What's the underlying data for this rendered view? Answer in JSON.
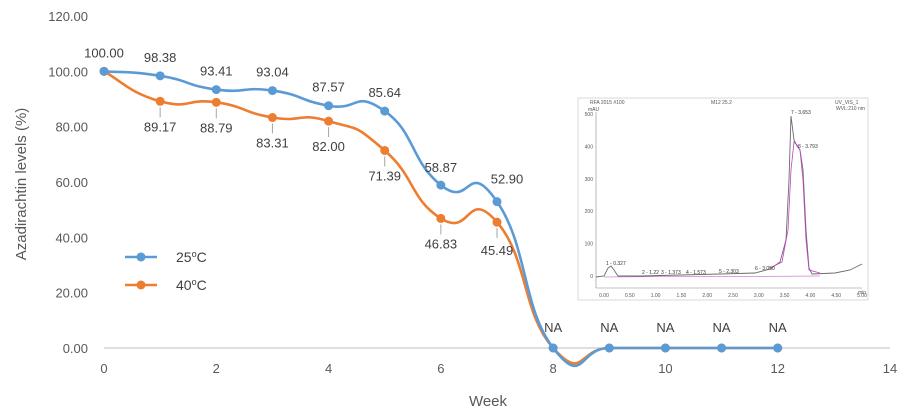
{
  "chart_data": {
    "type": "line",
    "title": "",
    "xlabel": "Week",
    "ylabel": "Azadirachtin levels (%)",
    "xlim": [
      0,
      14
    ],
    "ylim": [
      0,
      120
    ],
    "x_ticks": [
      "0",
      "2",
      "4",
      "6",
      "8",
      "10",
      "12",
      "14"
    ],
    "y_ticks": [
      "0.00",
      "20.00",
      "40.00",
      "60.00",
      "80.00",
      "100.00",
      "120.00"
    ],
    "grid": false,
    "legend_position": "left-middle",
    "series": [
      {
        "name_main": "25",
        "name_sup": "o",
        "name_tail": "C",
        "color": "#5B9BD5",
        "points": [
          {
            "x": 0,
            "y": 100.0,
            "label": "100.00"
          },
          {
            "x": 1,
            "y": 98.38,
            "label": "98.38"
          },
          {
            "x": 2,
            "y": 93.41,
            "label": "93.41"
          },
          {
            "x": 3,
            "y": 93.04,
            "label": "93.04"
          },
          {
            "x": 4,
            "y": 87.57,
            "label": "87.57"
          },
          {
            "x": 5,
            "y": 85.64,
            "label": "85.64"
          },
          {
            "x": 6,
            "y": 58.87,
            "label": "58.87"
          },
          {
            "x": 7,
            "y": 52.9,
            "label": "52.90"
          },
          {
            "x": 8,
            "y": 0,
            "label": "NA"
          },
          {
            "x": 9,
            "y": 0,
            "label": "NA"
          },
          {
            "x": 10,
            "y": 0,
            "label": "NA"
          },
          {
            "x": 11,
            "y": 0,
            "label": "NA"
          },
          {
            "x": 12,
            "y": 0,
            "label": "NA"
          }
        ]
      },
      {
        "name_main": "40",
        "name_sup": "o",
        "name_tail": "C",
        "color": "#ED7D31",
        "points": [
          {
            "x": 0,
            "y": 100.0,
            "label": ""
          },
          {
            "x": 1,
            "y": 89.17,
            "label": "89.17"
          },
          {
            "x": 2,
            "y": 88.79,
            "label": "88.79"
          },
          {
            "x": 3,
            "y": 83.31,
            "label": "83.31"
          },
          {
            "x": 4,
            "y": 82.0,
            "label": "82.00"
          },
          {
            "x": 5,
            "y": 71.39,
            "label": "71.39"
          },
          {
            "x": 6,
            "y": 46.83,
            "label": "46.83"
          },
          {
            "x": 7,
            "y": 45.49,
            "label": "45.49"
          },
          {
            "x": 8,
            "y": 0,
            "label": ""
          },
          {
            "x": 9,
            "y": 0,
            "label": ""
          },
          {
            "x": 10,
            "y": 0,
            "label": ""
          },
          {
            "x": 11,
            "y": 0,
            "label": ""
          },
          {
            "x": 12,
            "y": 0,
            "label": ""
          }
        ]
      }
    ]
  },
  "inset": {
    "header_left": "RFA 2015 #100",
    "header_mid": "M12 25.2",
    "header_right": "UV_VIS_1",
    "header_right2": "WVL:210 nm",
    "y_unit": "mAU",
    "x_unit": "min",
    "y_ticks": [
      "500",
      "400",
      "300",
      "200",
      "100",
      "0"
    ],
    "x_ticks": [
      "0.00",
      "0.50",
      "1.00",
      "1.50",
      "2.00",
      "2.50",
      "3.00",
      "3.50",
      "4.00",
      "4.50",
      "5.00"
    ],
    "peaks": [
      "1 - 0.327",
      "2 - 1.22",
      "3 - 1.373",
      "4 - 1.573",
      "5 - 2.303",
      "6 - 3.050",
      "7 - 3.653",
      "8 - 3.793"
    ]
  }
}
